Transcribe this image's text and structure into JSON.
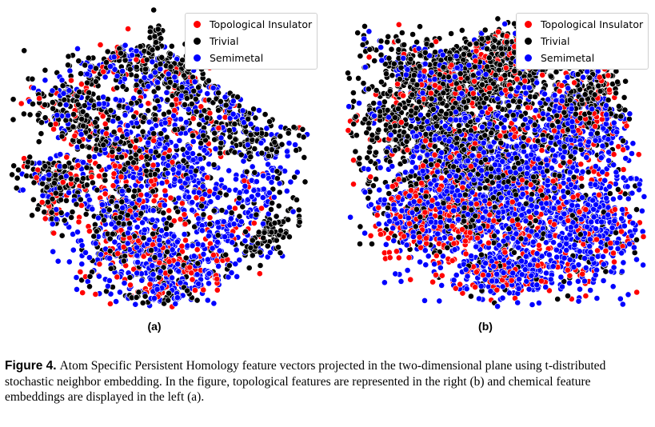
{
  "figure": {
    "panels": [
      {
        "label": "(a)",
        "description_key": "chemical"
      },
      {
        "label": "(b)",
        "description_key": "topological"
      }
    ],
    "legend": {
      "entries": [
        {
          "name": "Topological Insulator",
          "color": "#ff0000"
        },
        {
          "name": "Trivial",
          "color": "#000000"
        },
        {
          "name": "Semimetal",
          "color": "#0000ff"
        }
      ]
    },
    "caption": {
      "label": "Figure 4.",
      "text": "Atom Specific Persistent Homology feature vectors projected in the two-dimensional plane using t-distributed stochastic neighbor embedding. In the figure, topological features are represented in the right (b) and chemical feature embeddings are displayed in the left (a)."
    }
  },
  "chart_data": [
    {
      "type": "scatter",
      "panel": "(a)",
      "series": [
        {
          "name": "Topological Insulator",
          "color": "#ff0000"
        },
        {
          "name": "Trivial",
          "color": "#000000"
        },
        {
          "name": "Semimetal",
          "color": "#0000ff"
        }
      ],
      "axes_visible": false,
      "legend_position": "top-right"
    },
    {
      "type": "scatter",
      "panel": "(b)",
      "series": [
        {
          "name": "Topological Insulator",
          "color": "#ff0000"
        },
        {
          "name": "Trivial",
          "color": "#000000"
        },
        {
          "name": "Semimetal",
          "color": "#0000ff"
        }
      ],
      "axes_visible": false,
      "legend_position": "top-right"
    }
  ]
}
